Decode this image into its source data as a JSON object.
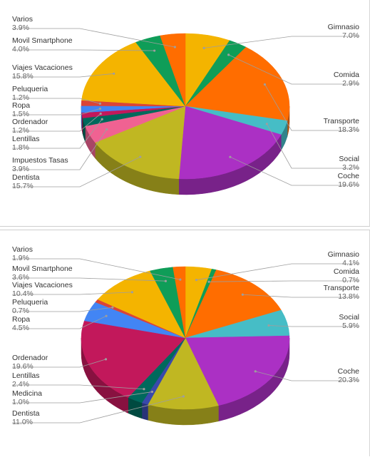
{
  "chart_data": [
    {
      "type": "pie",
      "style": "3d",
      "categories": [
        "Gimnasio",
        "Comida",
        "Transporte",
        "Social",
        "Coche",
        "Dentista",
        "Impuestos Tasas",
        "Lentillas",
        "Ordenador",
        "Ropa",
        "Peluqueria",
        "Viajes Vacaciones",
        "Movil Smartphone",
        "Varios"
      ],
      "values": [
        7.0,
        2.9,
        18.3,
        3.2,
        19.6,
        15.7,
        3.9,
        1.8,
        1.2,
        1.5,
        1.2,
        15.8,
        4.0,
        3.9
      ],
      "value_labels": [
        "7.0%",
        "2.9%",
        "18.3%",
        "3.2%",
        "19.6%",
        "15.7%",
        "3.9%",
        "1.8%",
        "1.2%",
        "1.5%",
        "1.2%",
        "15.8%",
        "4.0%",
        "3.9%"
      ],
      "colors": [
        "#f4b400",
        "#0f9d58",
        "#ff6d00",
        "#46bdc6",
        "#ab30c4",
        "#c0b722",
        "#f06292",
        "#00695c",
        "#c2185b",
        "#4285f4",
        "#db4437",
        "#f4b400",
        "#0f9d58",
        "#ff6d00"
      ],
      "legend": "none",
      "labels": "outside with leader lines"
    },
    {
      "type": "pie",
      "style": "3d",
      "categories": [
        "Gimnasio",
        "Comida",
        "Transporte",
        "Social",
        "Coche",
        "Dentista",
        "Medicina",
        "Lentillas",
        "Ordenador",
        "Ropa",
        "Peluqueria",
        "Viajes Vacaciones",
        "Movil Smartphone",
        "Varios"
      ],
      "values": [
        4.1,
        0.7,
        13.8,
        5.9,
        20.3,
        11.0,
        1.0,
        2.4,
        19.6,
        4.5,
        0.7,
        10.4,
        3.6,
        1.9
      ],
      "value_labels": [
        "4.1%",
        "0.7%",
        "13.8%",
        "5.9%",
        "20.3%",
        "11.0%",
        "1.0%",
        "2.4%",
        "19.6%",
        "4.5%",
        "0.7%",
        "10.4%",
        "3.6%",
        "1.9%"
      ],
      "colors": [
        "#f4b400",
        "#0f9d58",
        "#ff6d00",
        "#46bdc6",
        "#ab30c4",
        "#c0b722",
        "#3949ab",
        "#00695c",
        "#c2185b",
        "#4285f4",
        "#db4437",
        "#f4b400",
        "#0f9d58",
        "#ff6d00"
      ],
      "legend": "none",
      "labels": "outside with leader lines"
    }
  ]
}
